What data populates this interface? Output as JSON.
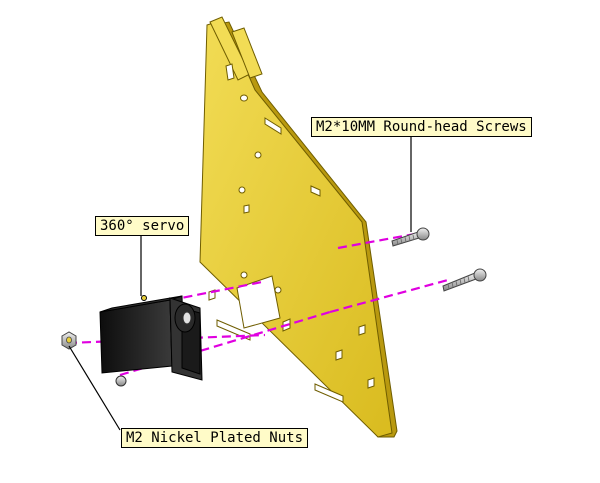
{
  "callouts": {
    "screws": "M2*10MM Round-head Screws",
    "servo": "360°  servo",
    "nuts": "M2 Nickel Plated Nuts"
  },
  "colors": {
    "plate": "#e8cf3a",
    "plate_edge": "#8a7400",
    "servo": "#1f1f1f",
    "guide_line": "#e000e0",
    "callout_bg": "#fffbc8"
  }
}
